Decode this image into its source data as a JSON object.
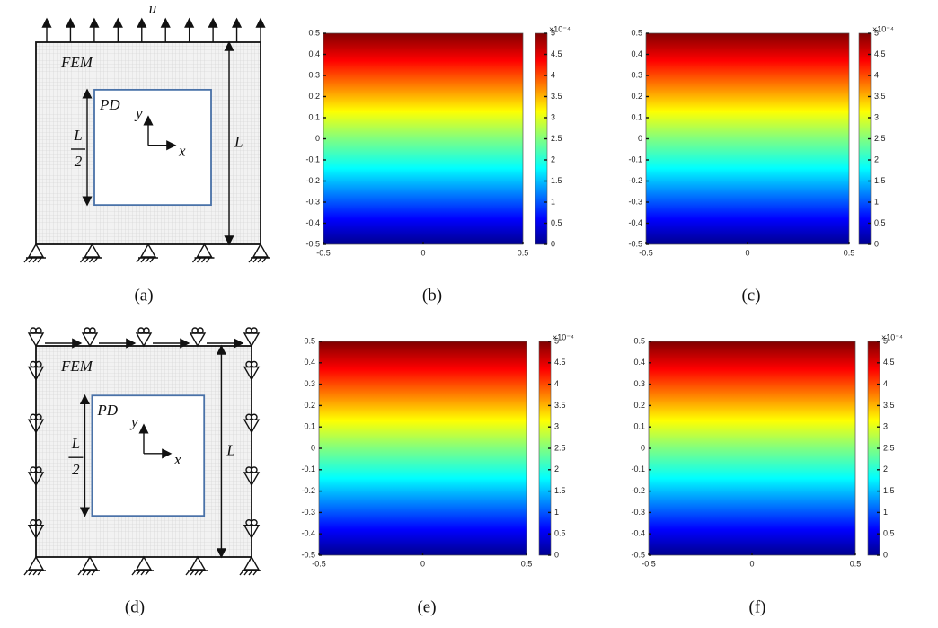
{
  "figure": {
    "panels": [
      {
        "kind": "diagram",
        "caption": "(a)",
        "load": "u",
        "outer": "FEM",
        "inner": "PD",
        "half_numerator": "L",
        "half_denominator": "2",
        "y_axis": "y",
        "x_axis": "x",
        "length": "L"
      },
      {
        "kind": "heatmap",
        "caption": "(b)",
        "xlim": [
          -0.5,
          0.5
        ],
        "ylim": [
          -0.5,
          0.5
        ],
        "xticks": [
          -0.5,
          0,
          0.5
        ],
        "yticks": [
          -0.5,
          -0.4,
          -0.3,
          -0.2,
          -0.1,
          0,
          0.1,
          0.2,
          0.3,
          0.4,
          0.5
        ],
        "clim": [
          0,
          5
        ],
        "cticks": [
          0,
          0.5,
          1,
          1.5,
          2,
          2.5,
          3,
          3.5,
          4,
          4.5,
          5
        ],
        "cexponent": "×10⁻⁴"
      },
      {
        "kind": "heatmap",
        "caption": "(c)",
        "xlim": [
          -0.5,
          0.5
        ],
        "ylim": [
          -0.5,
          0.5
        ],
        "xticks": [
          -0.5,
          0,
          0.5
        ],
        "yticks": [
          -0.5,
          -0.4,
          -0.3,
          -0.2,
          -0.1,
          0,
          0.1,
          0.2,
          0.3,
          0.4,
          0.5
        ],
        "clim": [
          0,
          5
        ],
        "cticks": [
          0,
          0.5,
          1,
          1.5,
          2,
          2.5,
          3,
          3.5,
          4,
          4.5,
          5
        ],
        "cexponent": "×10⁻⁴"
      },
      {
        "kind": "diagram",
        "caption": "(d)",
        "outer": "FEM",
        "inner": "PD",
        "half_numerator": "L",
        "half_denominator": "2",
        "y_axis": "y",
        "x_axis": "x",
        "length": "L"
      },
      {
        "kind": "heatmap",
        "caption": "(e)",
        "xlim": [
          -0.5,
          0.5
        ],
        "ylim": [
          -0.5,
          0.5
        ],
        "xticks": [
          -0.5,
          0,
          0.5
        ],
        "yticks": [
          -0.5,
          -0.4,
          -0.3,
          -0.2,
          -0.1,
          0,
          0.1,
          0.2,
          0.3,
          0.4,
          0.5
        ],
        "clim": [
          0,
          5
        ],
        "cticks": [
          0,
          0.5,
          1,
          1.5,
          2,
          2.5,
          3,
          3.5,
          4,
          4.5,
          5
        ],
        "cexponent": "×10⁻⁴"
      },
      {
        "kind": "heatmap",
        "caption": "(f)",
        "xlim": [
          -0.5,
          0.5
        ],
        "ylim": [
          -0.5,
          0.5
        ],
        "xticks": [
          -0.5,
          0,
          0.5
        ],
        "yticks": [
          -0.5,
          -0.4,
          -0.3,
          -0.2,
          -0.1,
          0,
          0.1,
          0.2,
          0.3,
          0.4,
          0.5
        ],
        "clim": [
          0,
          5
        ],
        "cticks": [
          0,
          0.5,
          1,
          1.5,
          2,
          2.5,
          3,
          3.5,
          4,
          4.5,
          5
        ],
        "cexponent": "×10⁻⁴"
      }
    ]
  }
}
